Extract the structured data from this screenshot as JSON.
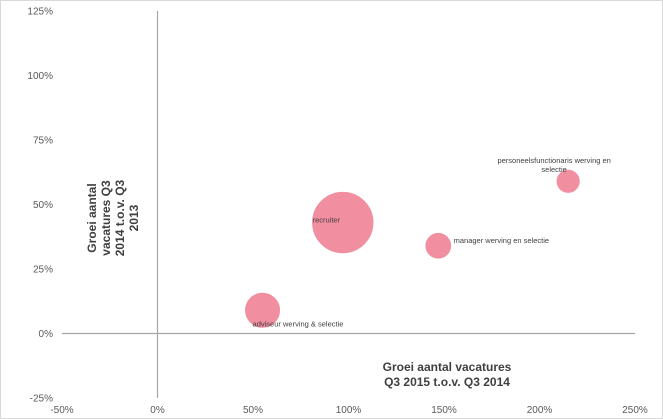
{
  "chart_data": {
    "type": "scatter",
    "variant": "bubble",
    "title": "",
    "xlabel": [
      "Groei aantal vacatures",
      "Q3 2015 t.o.v. Q3 2014"
    ],
    "ylabel": [
      "Groei aantal",
      "vacatures Q3",
      "2014 t.o.v. Q3",
      "2013"
    ],
    "xlim": [
      -50,
      250
    ],
    "ylim": [
      -25,
      125
    ],
    "x_ticks": [
      -50,
      0,
      50,
      100,
      150,
      200,
      250
    ],
    "y_ticks": [
      -25,
      0,
      25,
      50,
      75,
      100,
      125
    ],
    "x_tick_labels": [
      "-50%",
      "0%",
      "50%",
      "100%",
      "150%",
      "200%",
      "250%"
    ],
    "y_tick_labels": [
      "-25%",
      "0%",
      "25%",
      "50%",
      "75%",
      "100%",
      "125%"
    ],
    "grid": false,
    "legend": "none",
    "bubble_color": "#f08296",
    "points": [
      {
        "label": [
          "adviseur  werving  & selectie"
        ],
        "x": 55,
        "y": 9,
        "size": 1.0,
        "label_pos": "below"
      },
      {
        "label": [
          "recruiter"
        ],
        "x": 97,
        "y": 43,
        "size": 3.0,
        "label_pos": "left-inside"
      },
      {
        "label": [
          "manager  werving  en selectie"
        ],
        "x": 147,
        "y": 34,
        "size": 0.55,
        "label_pos": "right"
      },
      {
        "label": [
          "personeelsfunctionaris  werving  en",
          "selectie"
        ],
        "x": 215,
        "y": 59,
        "size": 0.45,
        "label_pos": "above"
      }
    ]
  }
}
